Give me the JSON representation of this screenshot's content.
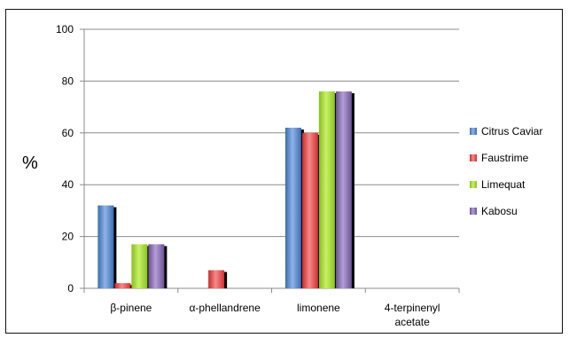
{
  "chart_data": {
    "type": "bar",
    "ylabel": "%",
    "xlabel": "",
    "ylim": [
      0,
      100
    ],
    "yticks": [
      0,
      20,
      40,
      60,
      80,
      100
    ],
    "grid": "horizontal",
    "legend_position": "right",
    "categories": [
      [
        "β-pinene"
      ],
      [
        "α-phellandrene"
      ],
      [
        "limonene"
      ],
      [
        "4-terpinenyl",
        "acetate"
      ]
    ],
    "series": [
      {
        "name": "Citrus Caviar",
        "color": "#4f81bd",
        "values": [
          32,
          0,
          62,
          0
        ]
      },
      {
        "name": "Faustrime",
        "color": "#e03c3c",
        "values": [
          2,
          7,
          60,
          0
        ]
      },
      {
        "name": "Limequat",
        "color": "#9bd12a",
        "values": [
          17,
          0,
          76,
          0
        ]
      },
      {
        "name": "Kabosu",
        "color": "#8064a2",
        "values": [
          17,
          0,
          76,
          0
        ]
      }
    ]
  }
}
